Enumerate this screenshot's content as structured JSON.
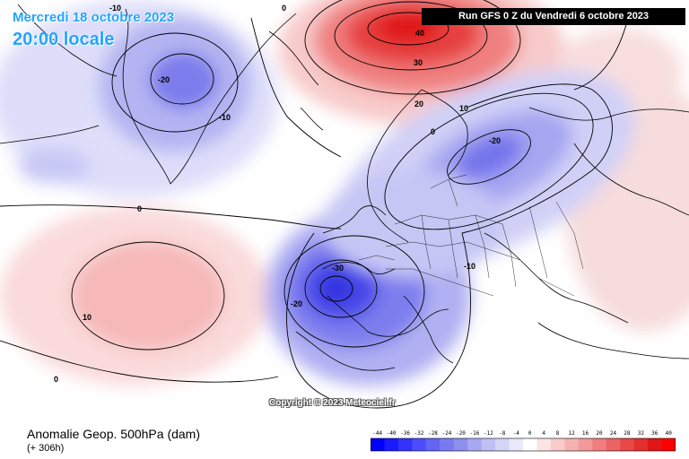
{
  "header": {
    "date": "Mercredi 18 octobre 2023",
    "time": "20:00 locale",
    "run": "Run GFS 0 Z du Vendredi 6 octobre 2023"
  },
  "copyright": "Copyright © 2023 Meteociel.fr",
  "footer": {
    "title": "Anomalie Geop. 500hPa (dam)",
    "subtitle": "(+ 306h)"
  },
  "legend": {
    "values": [
      "-44",
      "-40",
      "-36",
      "-32",
      "-28",
      "-24",
      "-20",
      "-16",
      "-12",
      "-8",
      "-4",
      "0",
      "4",
      "8",
      "12",
      "16",
      "20",
      "24",
      "28",
      "32",
      "36",
      "40"
    ],
    "colors": [
      "#0000ff",
      "#1a1aff",
      "#3333ff",
      "#4d4dff",
      "#6464f5",
      "#7a7af0",
      "#8f8fee",
      "#a8a8f2",
      "#bfbff5",
      "#d5d5f8",
      "#e9e9fb",
      "#ffffff",
      "#fbe4e4",
      "#f9cccc",
      "#f6b2b2",
      "#f39999",
      "#f07e7e",
      "#ec6363",
      "#e84848",
      "#e42f2f",
      "#e01616",
      "#ff0000"
    ]
  },
  "contour_labels": [
    "-10",
    "-20",
    "-10",
    "0",
    "40",
    "30",
    "20",
    "10",
    "-20",
    "0",
    "-30",
    "-20",
    "-10",
    "10",
    "0",
    "0"
  ],
  "colors": {
    "accent_text": "#22a4ff",
    "negative": "#4646ff",
    "positive": "#ff2020"
  }
}
